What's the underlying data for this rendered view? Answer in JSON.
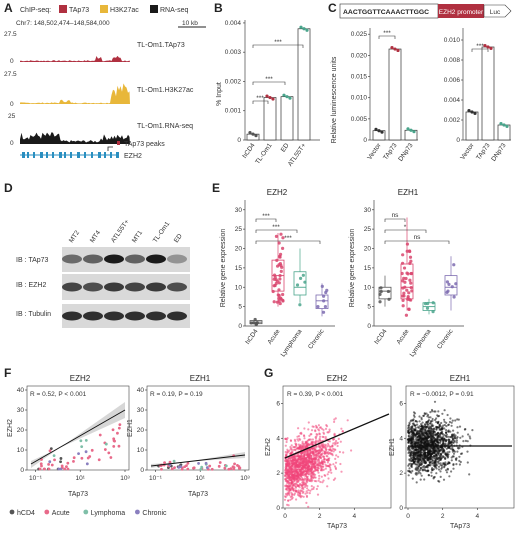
{
  "panels": {
    "A": {
      "label": "A",
      "legend_title": "ChIP-seq:",
      "legend": [
        {
          "name": "TAp73",
          "color": "#b03040"
        },
        {
          "name": "H3K27ac",
          "color": "#e8b73a"
        },
        {
          "name": "RNA-seq",
          "color": "#1a1a1a"
        }
      ],
      "coords": "Chr7: 148,502,474–148,584,000",
      "scale_bar": "10 kb",
      "tracks": [
        {
          "name": "TL-Om1.TAp73",
          "max": "27.5",
          "min": "0",
          "color": "#b03040"
        },
        {
          "name": "TL-Om1.H3K27ac",
          "max": "27.5",
          "min": "0",
          "color": "#e8b73a"
        },
        {
          "name": "TL-Om1.RNA-seq",
          "max": "25",
          "min": "0",
          "color": "#1a1a1a"
        }
      ],
      "peaks_label": "TAp73 peaks",
      "gene_label": "EZH2"
    },
    "B": {
      "label": "B",
      "ylabel": "% Input",
      "yticks": [
        "0",
        "0.001",
        "0.002",
        "0.003",
        "0.004"
      ],
      "categories": [
        "hCD4",
        "TL-Om1",
        "ED",
        "ATL55T+"
      ],
      "values": [
        0.0002,
        0.00145,
        0.00148,
        0.0038
      ],
      "colors": [
        "#ffffff",
        "#ffffff",
        "#ffffff",
        "#ffffff"
      ],
      "dot_colors": [
        "#555555",
        "#b03040",
        "#4aa58c",
        "#4aa58c"
      ],
      "sig": [
        "***",
        "***",
        "***"
      ]
    },
    "C": {
      "label": "C",
      "construct_seq": "AACTGGTTCAAACTTGGC",
      "construct_promoter": "EZH2 promoter",
      "construct_luc": "Luc",
      "ylabel": "Relative luminescence units",
      "left": {
        "categories": [
          "Vector",
          "TAp73",
          "DNp73"
        ],
        "yticks": [
          "0",
          "0.005",
          "0.010",
          "0.015",
          "0.020",
          "0.025"
        ],
        "values": [
          0.0022,
          0.0215,
          0.0023
        ],
        "sig": "***"
      },
      "right": {
        "categories": [
          "Vector",
          "TAp73",
          "DNp73"
        ],
        "yticks": [
          "0",
          "0.002",
          "0.004",
          "0.006",
          "0.008",
          "0.010"
        ],
        "values": [
          0.0028,
          0.0093,
          0.0015
        ],
        "sig": "***"
      }
    },
    "D": {
      "label": "D",
      "lanes": [
        "MT2",
        "MT4",
        "ATL55T+",
        "MT1",
        "TL-Om1",
        "ED"
      ],
      "rows": [
        "IB : TAp73",
        "IB : EZH2",
        "IB : Tubulin"
      ]
    },
    "E": {
      "label": "E",
      "ylabel": "Relative gene expression",
      "left": {
        "title": "EZH2",
        "yticks": [
          "0",
          "5",
          "10",
          "15",
          "20",
          "25",
          "30"
        ],
        "categories": [
          "hCD4",
          "Acute",
          "Lymphoma",
          "Chronic"
        ],
        "sig": [
          "***",
          "***",
          "***"
        ]
      },
      "right": {
        "title": "EZH1",
        "yticks": [
          "0",
          "5",
          "10",
          "15",
          "20",
          "25",
          "30"
        ],
        "categories": [
          "hCD4",
          "Acute",
          "Lymphoma",
          "Chronic"
        ],
        "sig": [
          "ns",
          "*",
          "ns"
        ]
      }
    },
    "F": {
      "label": "F",
      "left": {
        "title": "EZH2",
        "stat": "R = 0.52, P < 0.001",
        "ylabel": "EZH2",
        "xlabel": "TAp73"
      },
      "right": {
        "title": "EZH1",
        "stat": "R = 0.19, P = 0.19",
        "ylabel": "EZH1",
        "xlabel": "TAp73"
      },
      "yticks": [
        "0",
        "10",
        "20",
        "30",
        "40"
      ],
      "xticks": [
        "10⁻¹",
        "10¹",
        "10³"
      ],
      "legend": [
        {
          "name": "hCD4",
          "color": "#555555"
        },
        {
          "name": "Acute",
          "color": "#e86a8a"
        },
        {
          "name": "Lymphoma",
          "color": "#7fbfa8"
        },
        {
          "name": "Chronic",
          "color": "#8a7fbf"
        }
      ]
    },
    "G": {
      "label": "G",
      "left": {
        "title": "EZH2",
        "stat": "R = 0.39, P < 0.001",
        "ylabel": "EZH2",
        "xlabel": "TAp73",
        "color": "#f0457a",
        "yticks": [
          "0",
          "2",
          "4",
          "6"
        ],
        "xticks": [
          "0",
          "2",
          "4"
        ]
      },
      "right": {
        "title": "EZH1",
        "stat": "R = −0.0012, P = 0.91",
        "ylabel": "EZH1",
        "xlabel": "TAp73",
        "color": "#111111",
        "yticks": [
          "0",
          "2",
          "4",
          "6"
        ],
        "xticks": [
          "0",
          "2",
          "4"
        ]
      }
    }
  },
  "chart_data": [
    {
      "type": "bar",
      "title": "",
      "ylabel": "% Input",
      "categories": [
        "hCD4",
        "TL-Om1",
        "ED",
        "ATL55T+"
      ],
      "values": [
        0.0002,
        0.00145,
        0.00148,
        0.0038
      ],
      "ylim": [
        0,
        0.0041
      ]
    },
    {
      "type": "bar",
      "title": "",
      "ylabel": "Relative luminescence units",
      "categories": [
        "Vector",
        "TAp73",
        "DNp73"
      ],
      "values": [
        0.0022,
        0.0215,
        0.0023
      ],
      "ylim": [
        0,
        0.026
      ]
    },
    {
      "type": "bar",
      "title": "",
      "ylabel": "",
      "categories": [
        "Vector",
        "TAp73",
        "DNp73"
      ],
      "values": [
        0.0028,
        0.0093,
        0.0015
      ],
      "ylim": [
        0,
        0.011
      ]
    },
    {
      "type": "scatter",
      "title": "EZH2",
      "xlabel": "TAp73",
      "ylabel": "EZH2",
      "xscale": "log",
      "xlim": [
        0.1,
        1000
      ],
      "ylim": [
        0,
        40
      ]
    },
    {
      "type": "scatter",
      "title": "EZH1",
      "xlabel": "TAp73",
      "ylabel": "EZH1",
      "xscale": "log",
      "xlim": [
        0.1,
        1000
      ],
      "ylim": [
        0,
        40
      ]
    },
    {
      "type": "scatter",
      "title": "EZH2",
      "xlabel": "TAp73",
      "ylabel": "EZH2",
      "xlim": [
        0,
        6
      ],
      "ylim": [
        0,
        7
      ]
    },
    {
      "type": "scatter",
      "title": "EZH1",
      "xlabel": "TAp73",
      "ylabel": "EZH1",
      "xlim": [
        0,
        6
      ],
      "ylim": [
        0,
        7
      ]
    }
  ]
}
